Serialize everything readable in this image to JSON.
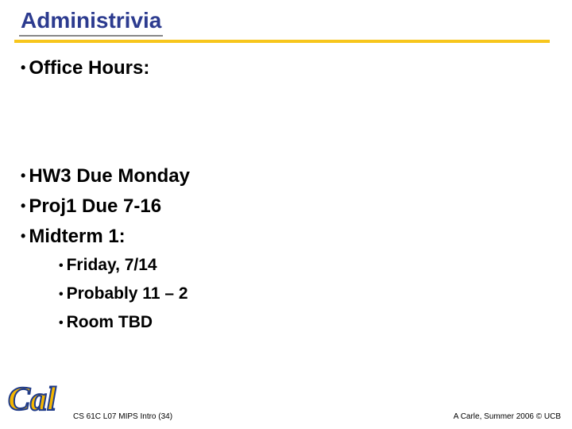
{
  "title": "Administrivia",
  "bullets": {
    "b1": "Office Hours:",
    "b2": "HW3 Due Monday",
    "b3": "Proj1 Due 7-16",
    "b4": "Midterm 1:",
    "s1": "Friday, 7/14",
    "s2": "Probably 11 – 2",
    "s3": "Room TBD"
  },
  "footer": {
    "left": "CS 61C L07 MIPS Intro (34)",
    "right": "A Carle, Summer 2006 © UCB"
  },
  "colors": {
    "title": "#2c3b8f",
    "rule": "#f7c61d",
    "logo_blue": "#1f3b8a",
    "logo_gold": "#f5b700"
  }
}
